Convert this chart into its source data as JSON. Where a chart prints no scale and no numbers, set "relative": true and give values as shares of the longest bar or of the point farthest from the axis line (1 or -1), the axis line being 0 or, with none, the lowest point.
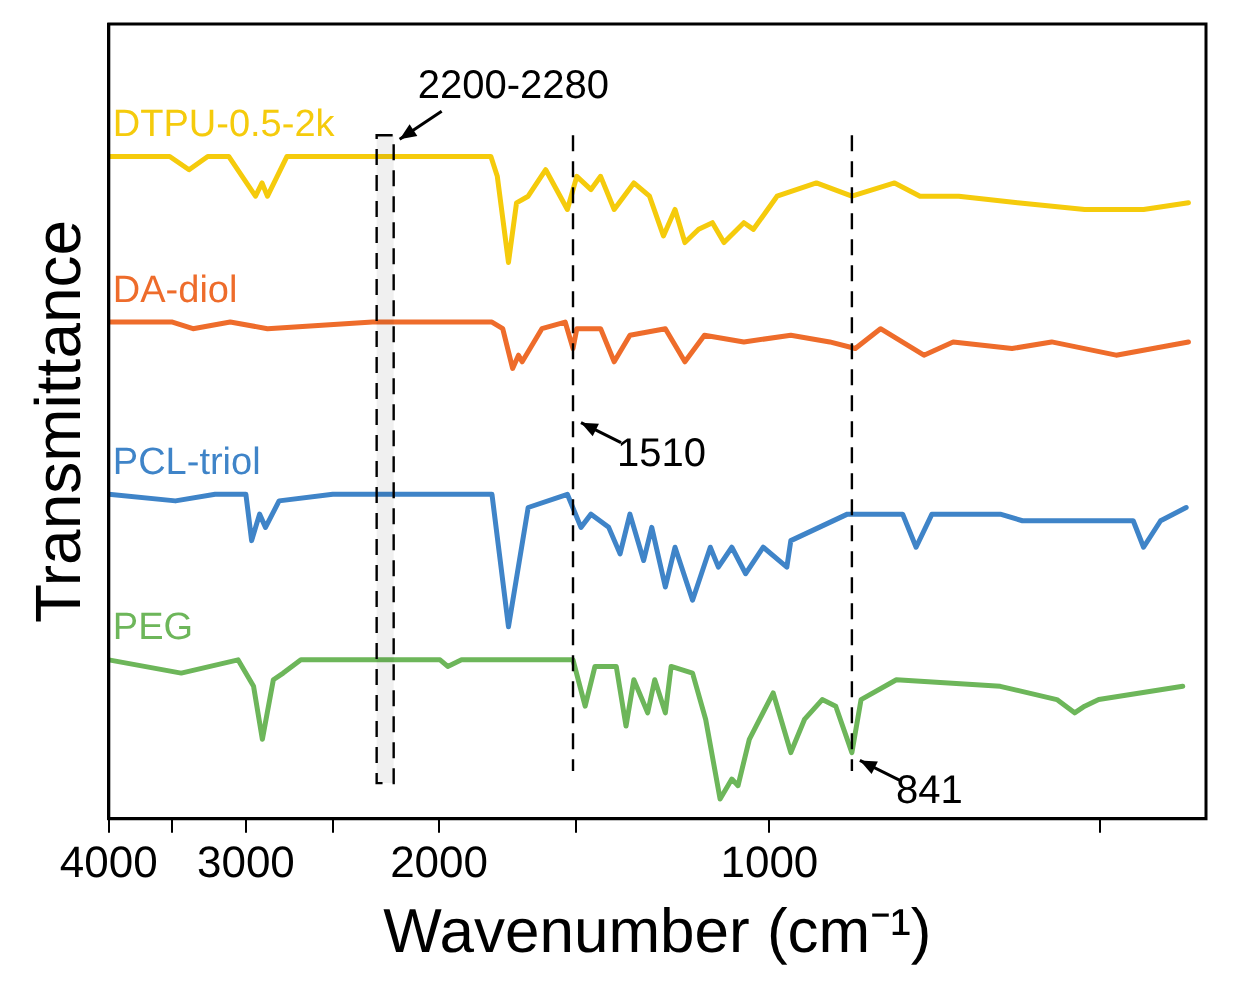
{
  "chart_data": {
    "type": "line",
    "xlabel": "Wavenumber (cm⁻¹)",
    "ylabel": "Transmittance",
    "relative": true,
    "log": "x",
    "xlim": [
      4000,
      400
    ],
    "xticks": [
      4000,
      {
        "value": 3500,
        "label": null
      },
      3000,
      {
        "value": 2500,
        "label": null
      },
      2000,
      {
        "value": 1500,
        "label": null
      },
      1000,
      {
        "value": 500,
        "label": null
      }
    ],
    "grid": false,
    "legend": false,
    "marker": "none",
    "line_style": "solid",
    "ref_lines": [
      {
        "axis": "x",
        "value": 1510,
        "label": "1510"
      },
      {
        "axis": "x",
        "value": 841,
        "label": "841"
      }
    ],
    "bands": [
      {
        "axis": "x",
        "from": 2280,
        "to": 2200,
        "label": "2200-2280"
      }
    ],
    "series": [
      {
        "name": "DTPU-0.5-2k",
        "color": "#f5cb0c",
        "x": [
          4000,
          3520,
          3380,
          3250,
          3110,
          2940,
          2900,
          2867,
          2752,
          2300,
          2000,
          1794,
          1770,
          1729,
          1700,
          1659,
          1599,
          1528,
          1498,
          1454,
          1425,
          1385,
          1329,
          1286,
          1249,
          1219,
          1194,
          1160,
          1127,
          1100,
          1055,
          1034,
          984,
          906,
          841,
          769,
          729,
          672,
          594,
          516,
          456,
          415
        ],
        "values": [
          1.0,
          1.0,
          0.98,
          1.0,
          1.0,
          0.94,
          0.96,
          0.94,
          1.0,
          1.0,
          1.0,
          1.0,
          0.97,
          0.84,
          0.93,
          0.94,
          0.98,
          0.92,
          0.97,
          0.95,
          0.97,
          0.92,
          0.96,
          0.94,
          0.88,
          0.92,
          0.87,
          0.89,
          0.9,
          0.87,
          0.9,
          0.89,
          0.94,
          0.96,
          0.94,
          0.96,
          0.94,
          0.94,
          0.93,
          0.92,
          0.92,
          0.93
        ]
      },
      {
        "name": "DA-diol",
        "color": "#ee6c2b",
        "x": [
          4000,
          3500,
          3352,
          3100,
          2867,
          2300,
          1790,
          1750,
          1714,
          1693,
          1680,
          1612,
          1535,
          1510,
          1498,
          1425,
          1385,
          1340,
          1244,
          1194,
          1146,
          1055,
          956,
          881,
          835,
          792,
          723,
          680,
          601,
          553,
          483,
          415
        ],
        "values": [
          0.75,
          0.75,
          0.74,
          0.75,
          0.74,
          0.75,
          0.75,
          0.74,
          0.68,
          0.7,
          0.69,
          0.74,
          0.75,
          0.71,
          0.74,
          0.74,
          0.69,
          0.73,
          0.74,
          0.69,
          0.73,
          0.72,
          0.73,
          0.72,
          0.71,
          0.74,
          0.7,
          0.72,
          0.71,
          0.72,
          0.7,
          0.72
        ]
      },
      {
        "name": "PCL-triol",
        "color": "#3f84c8",
        "x": [
          4000,
          3478,
          3200,
          3000,
          2964,
          2915,
          2879,
          2798,
          2500,
          1790,
          1729,
          1659,
          1528,
          1485,
          1454,
          1401,
          1368,
          1340,
          1302,
          1280,
          1244,
          1219,
          1175,
          1132,
          1113,
          1082,
          1051,
          1013,
          964,
          956,
          849,
          756,
          735,
          711,
          616,
          588,
          531,
          466,
          456,
          440,
          417
        ],
        "values": [
          0.49,
          0.48,
          0.49,
          0.49,
          0.42,
          0.46,
          0.44,
          0.48,
          0.49,
          0.49,
          0.29,
          0.47,
          0.49,
          0.44,
          0.46,
          0.44,
          0.4,
          0.46,
          0.39,
          0.44,
          0.35,
          0.41,
          0.33,
          0.41,
          0.38,
          0.41,
          0.37,
          0.41,
          0.38,
          0.42,
          0.46,
          0.46,
          0.41,
          0.46,
          0.46,
          0.45,
          0.45,
          0.45,
          0.41,
          0.45,
          0.47
        ]
      },
      {
        "name": "PEG",
        "color": "#6db65a",
        "x": [
          4000,
          3436,
          3050,
          2952,
          2898,
          2832,
          2774,
          2673,
          1996,
          1964,
          1908,
          1659,
          1510,
          1472,
          1442,
          1379,
          1351,
          1329,
          1291,
          1272,
          1244,
          1229,
          1175,
          1143,
          1109,
          1082,
          1068,
          1043,
          992,
          956,
          929,
          895,
          870,
          841,
          825,
          766,
          616,
          547,
          527,
          516,
          501,
          420
        ],
        "values": [
          0.24,
          0.22,
          0.24,
          0.2,
          0.12,
          0.21,
          0.22,
          0.24,
          0.24,
          0.23,
          0.24,
          0.24,
          0.24,
          0.17,
          0.23,
          0.23,
          0.14,
          0.21,
          0.16,
          0.21,
          0.16,
          0.23,
          0.22,
          0.15,
          0.03,
          0.06,
          0.05,
          0.12,
          0.19,
          0.1,
          0.15,
          0.18,
          0.17,
          0.1,
          0.18,
          0.21,
          0.2,
          0.18,
          0.16,
          0.17,
          0.18,
          0.2
        ]
      }
    ]
  }
}
